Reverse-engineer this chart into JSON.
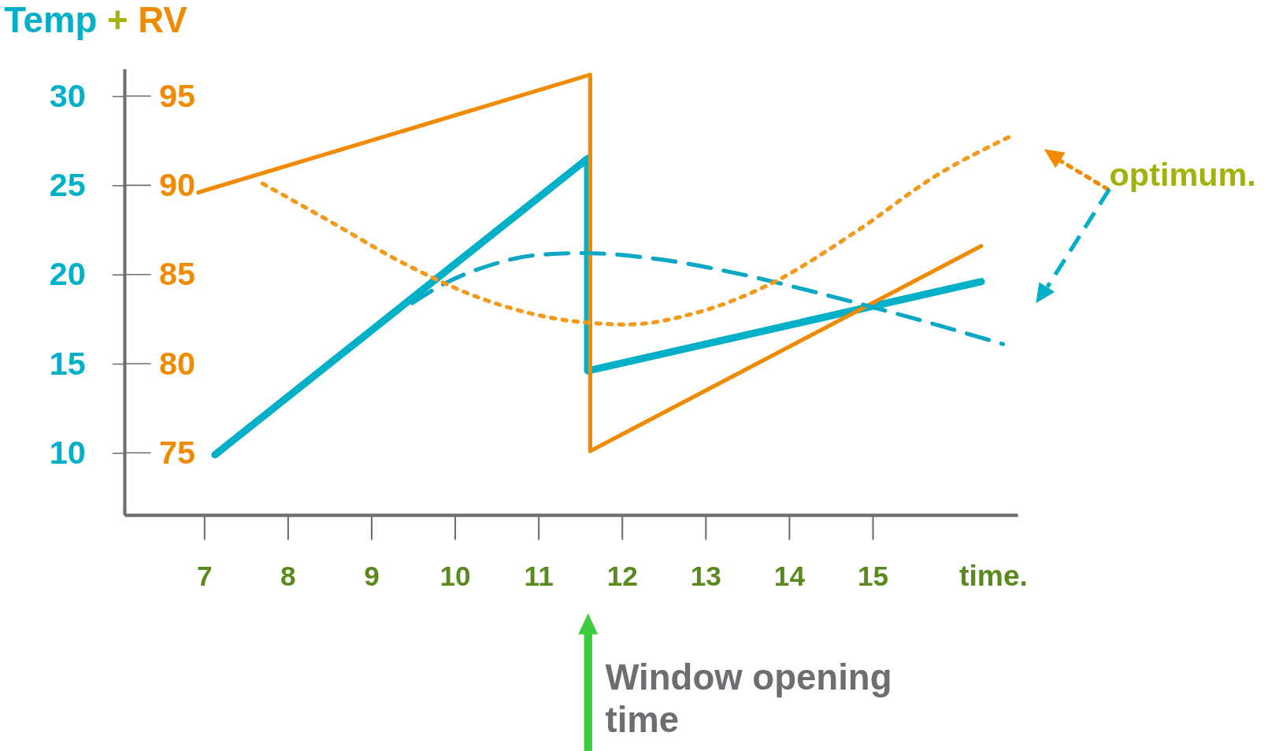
{
  "chart_data": {
    "type": "line",
    "ylabel": "Temp",
    "y2label": "RV",
    "xlabel": "time.",
    "xlim": [
      6.05,
      16.74
    ],
    "xticks": [
      7,
      8,
      9,
      10,
      11,
      12,
      13,
      14,
      15
    ],
    "ylim": [
      6.5,
      31.5
    ],
    "yticks": [
      10,
      15,
      20,
      25,
      30
    ],
    "y2lim": [
      71.5,
      96.5
    ],
    "y2ticks": [
      75,
      80,
      85,
      90,
      95
    ],
    "grid": false,
    "marker": "none",
    "series": [
      {
        "color": "#00afc8",
        "line_style": "solid",
        "x": [
          7.13,
          11.59,
          11.59,
          16.3
        ],
        "values": [
          9.9,
          26.5,
          14.6,
          19.6
        ]
      },
      {
        "color": "#f08a00",
        "line_style": "solid",
        "axis": "y2",
        "x": [
          6.93,
          11.62,
          11.62,
          16.3
        ],
        "values": [
          89.6,
          96.2,
          75.1,
          86.6
        ]
      },
      {
        "color": "#0aa8c4",
        "line_style": "dashed",
        "x": [
          9.49,
          9.88,
          10.41,
          11.0,
          11.54,
          12.37,
          13.34,
          14.32,
          15.29,
          16.56
        ],
        "values": [
          18.4,
          19.5,
          20.5,
          21.1,
          21.2,
          20.9,
          20.1,
          19.0,
          17.8,
          16.1
        ]
      },
      {
        "color": "#f39a1a",
        "line_style": "dotted",
        "axis": "y2",
        "x": [
          7.7,
          8.46,
          9.44,
          10.41,
          11.39,
          12.07,
          12.85,
          13.83,
          14.8,
          15.78,
          16.63
        ],
        "values": [
          90.1,
          88.1,
          85.5,
          83.5,
          82.4,
          82.2,
          82.8,
          84.6,
          87.4,
          90.6,
          92.7
        ]
      }
    ],
    "annotations": [
      "+",
      "optimum.",
      "Window opening time"
    ]
  }
}
